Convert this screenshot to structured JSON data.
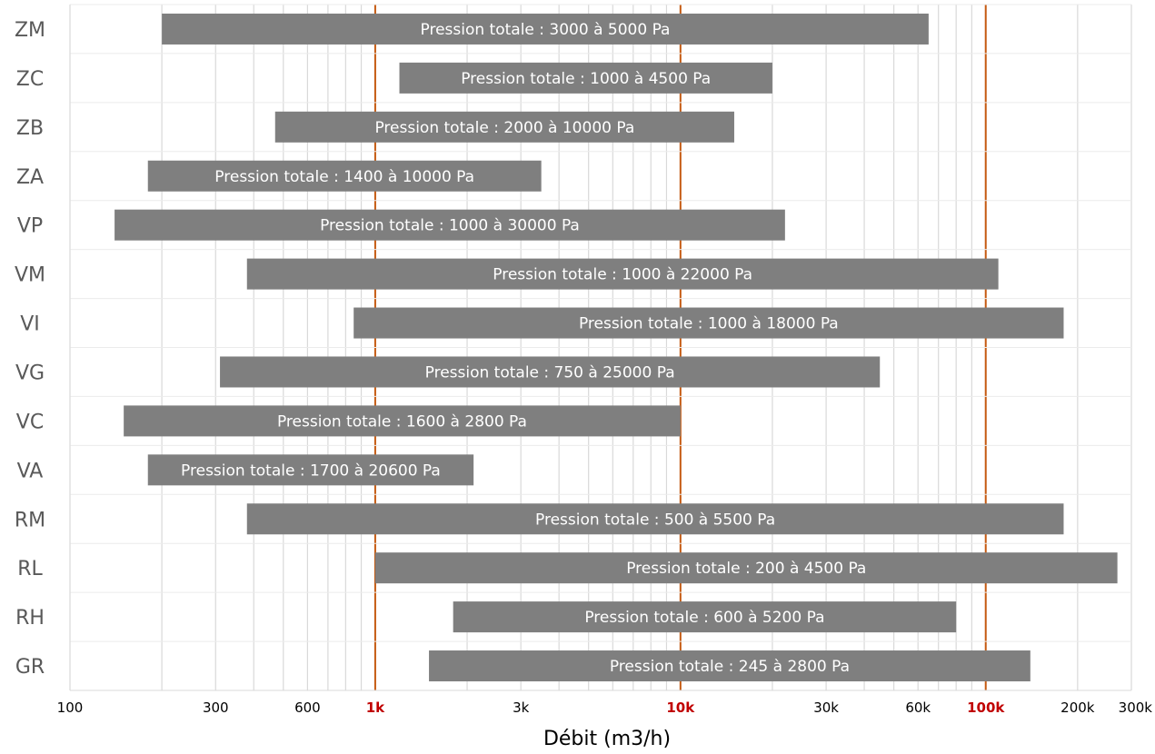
{
  "chart_data": {
    "type": "bar",
    "orientation": "horizontal",
    "floating": true,
    "xscale": "log",
    "xlim": [
      100,
      300000
    ],
    "xlabel": "Débit (m3/h)",
    "ylabel": "",
    "title": "",
    "grid": true,
    "bar_color": "#7f7f7f",
    "grid_color": "#d9d9d9",
    "major_line_color": "#c55a11",
    "major_tick_color": "#c00000",
    "major_ticks": [
      1000,
      10000,
      100000
    ],
    "x_ticks": [
      {
        "value": 100,
        "label": "100"
      },
      {
        "value": 300,
        "label": "300"
      },
      {
        "value": 600,
        "label": "600"
      },
      {
        "value": 1000,
        "label": "1k"
      },
      {
        "value": 3000,
        "label": "3k"
      },
      {
        "value": 10000,
        "label": "10k"
      },
      {
        "value": 30000,
        "label": "30k"
      },
      {
        "value": 60000,
        "label": "60k"
      },
      {
        "value": 100000,
        "label": "100k"
      },
      {
        "value": 200000,
        "label": "200k"
      },
      {
        "value": 300000,
        "label": "300k"
      }
    ],
    "rows": [
      {
        "category": "ZM",
        "start": 200,
        "end": 65000,
        "label": "Pression totale : 3000 à 5000 Pa"
      },
      {
        "category": "ZC",
        "start": 1200,
        "end": 20000,
        "label": "Pression totale : 1000 à 4500 Pa"
      },
      {
        "category": "ZB",
        "start": 470,
        "end": 15000,
        "label": "Pression totale : 2000 à 10000 Pa"
      },
      {
        "category": "ZA",
        "start": 180,
        "end": 3500,
        "label": "Pression totale : 1400 à 10000 Pa"
      },
      {
        "category": "VP",
        "start": 140,
        "end": 22000,
        "label": "Pression totale : 1000 à 30000 Pa"
      },
      {
        "category": "VM",
        "start": 380,
        "end": 110000,
        "label": "Pression totale : 1000 à 22000 Pa"
      },
      {
        "category": "VI",
        "start": 850,
        "end": 180000,
        "label": "Pression totale : 1000 à 18000 Pa"
      },
      {
        "category": "VG",
        "start": 310,
        "end": 45000,
        "label": "Pression totale : 750 à 25000 Pa"
      },
      {
        "category": "VC",
        "start": 150,
        "end": 10000,
        "label": "Pression totale : 1600 à 2800 Pa"
      },
      {
        "category": "VA",
        "start": 180,
        "end": 2100,
        "label": "Pression totale : 1700 à 20600 Pa"
      },
      {
        "category": "RM",
        "start": 380,
        "end": 180000,
        "label": "Pression totale : 500 à 5500 Pa"
      },
      {
        "category": "RL",
        "start": 1000,
        "end": 270000,
        "label": "Pression totale : 200 à 4500 Pa"
      },
      {
        "category": "RH",
        "start": 1800,
        "end": 80000,
        "label": "Pression totale : 600 à 5200 Pa"
      },
      {
        "category": "GR",
        "start": 1500,
        "end": 140000,
        "label": "Pression totale : 245 à 2800 Pa"
      }
    ]
  }
}
